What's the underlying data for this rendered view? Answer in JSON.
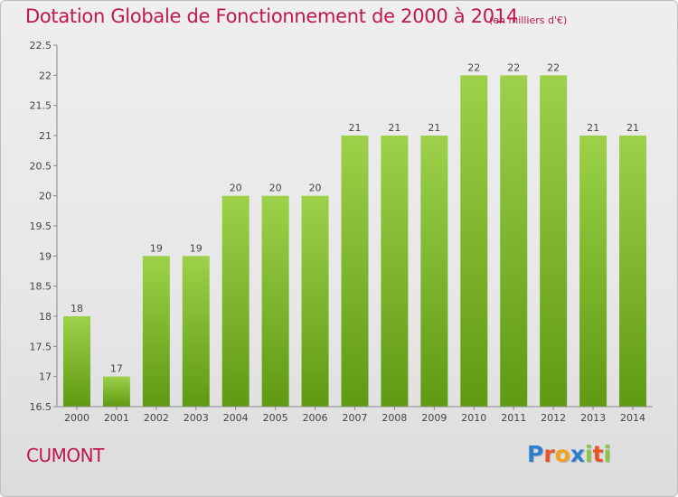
{
  "header": {
    "title": "Dotation Globale de Fonctionnement de 2000 à 2014",
    "subtitle": "(en milliers d'€)"
  },
  "footer": {
    "commune": "CUMONT",
    "brand": "Proxiti",
    "brand_letters": [
      {
        "char": "P",
        "color": "#2e7fd0"
      },
      {
        "char": "r",
        "color": "#e8542a"
      },
      {
        "char": "o",
        "color": "#f2a21b"
      },
      {
        "char": "x",
        "color": "#2e7fd0"
      },
      {
        "char": "i",
        "color": "#8bc34a"
      },
      {
        "char": "t",
        "color": "#e8542a"
      },
      {
        "char": "i",
        "color": "#8bc34a"
      }
    ]
  },
  "chart_data": {
    "type": "bar",
    "categories": [
      "2000",
      "2001",
      "2002",
      "2003",
      "2004",
      "2005",
      "2006",
      "2007",
      "2008",
      "2009",
      "2010",
      "2011",
      "2012",
      "2013",
      "2014"
    ],
    "values": [
      18,
      17,
      19,
      19,
      20,
      20,
      20,
      21,
      21,
      21,
      22,
      22,
      22,
      21,
      21
    ],
    "value_labels": [
      "18",
      "17",
      "19",
      "19",
      "20",
      "20",
      "20",
      "21",
      "21",
      "21",
      "22",
      "22",
      "22",
      "21",
      "21"
    ],
    "ylim": [
      16.5,
      22.5
    ],
    "yticks": [
      16.5,
      17,
      17.5,
      18,
      18.5,
      19,
      19.5,
      20,
      20.5,
      21,
      21.5,
      22,
      22.5
    ],
    "ytick_labels": [
      "16.5",
      "17",
      "17.5",
      "18",
      "18.5",
      "19",
      "19.5",
      "20",
      "20.5",
      "21",
      "21.5",
      "22",
      "22.5"
    ],
    "grid": false,
    "colors": {
      "bar_top": "#9dd14a",
      "bar_bottom": "#5f9a12",
      "axis": "#8a8a8a",
      "label": "#444444"
    }
  }
}
